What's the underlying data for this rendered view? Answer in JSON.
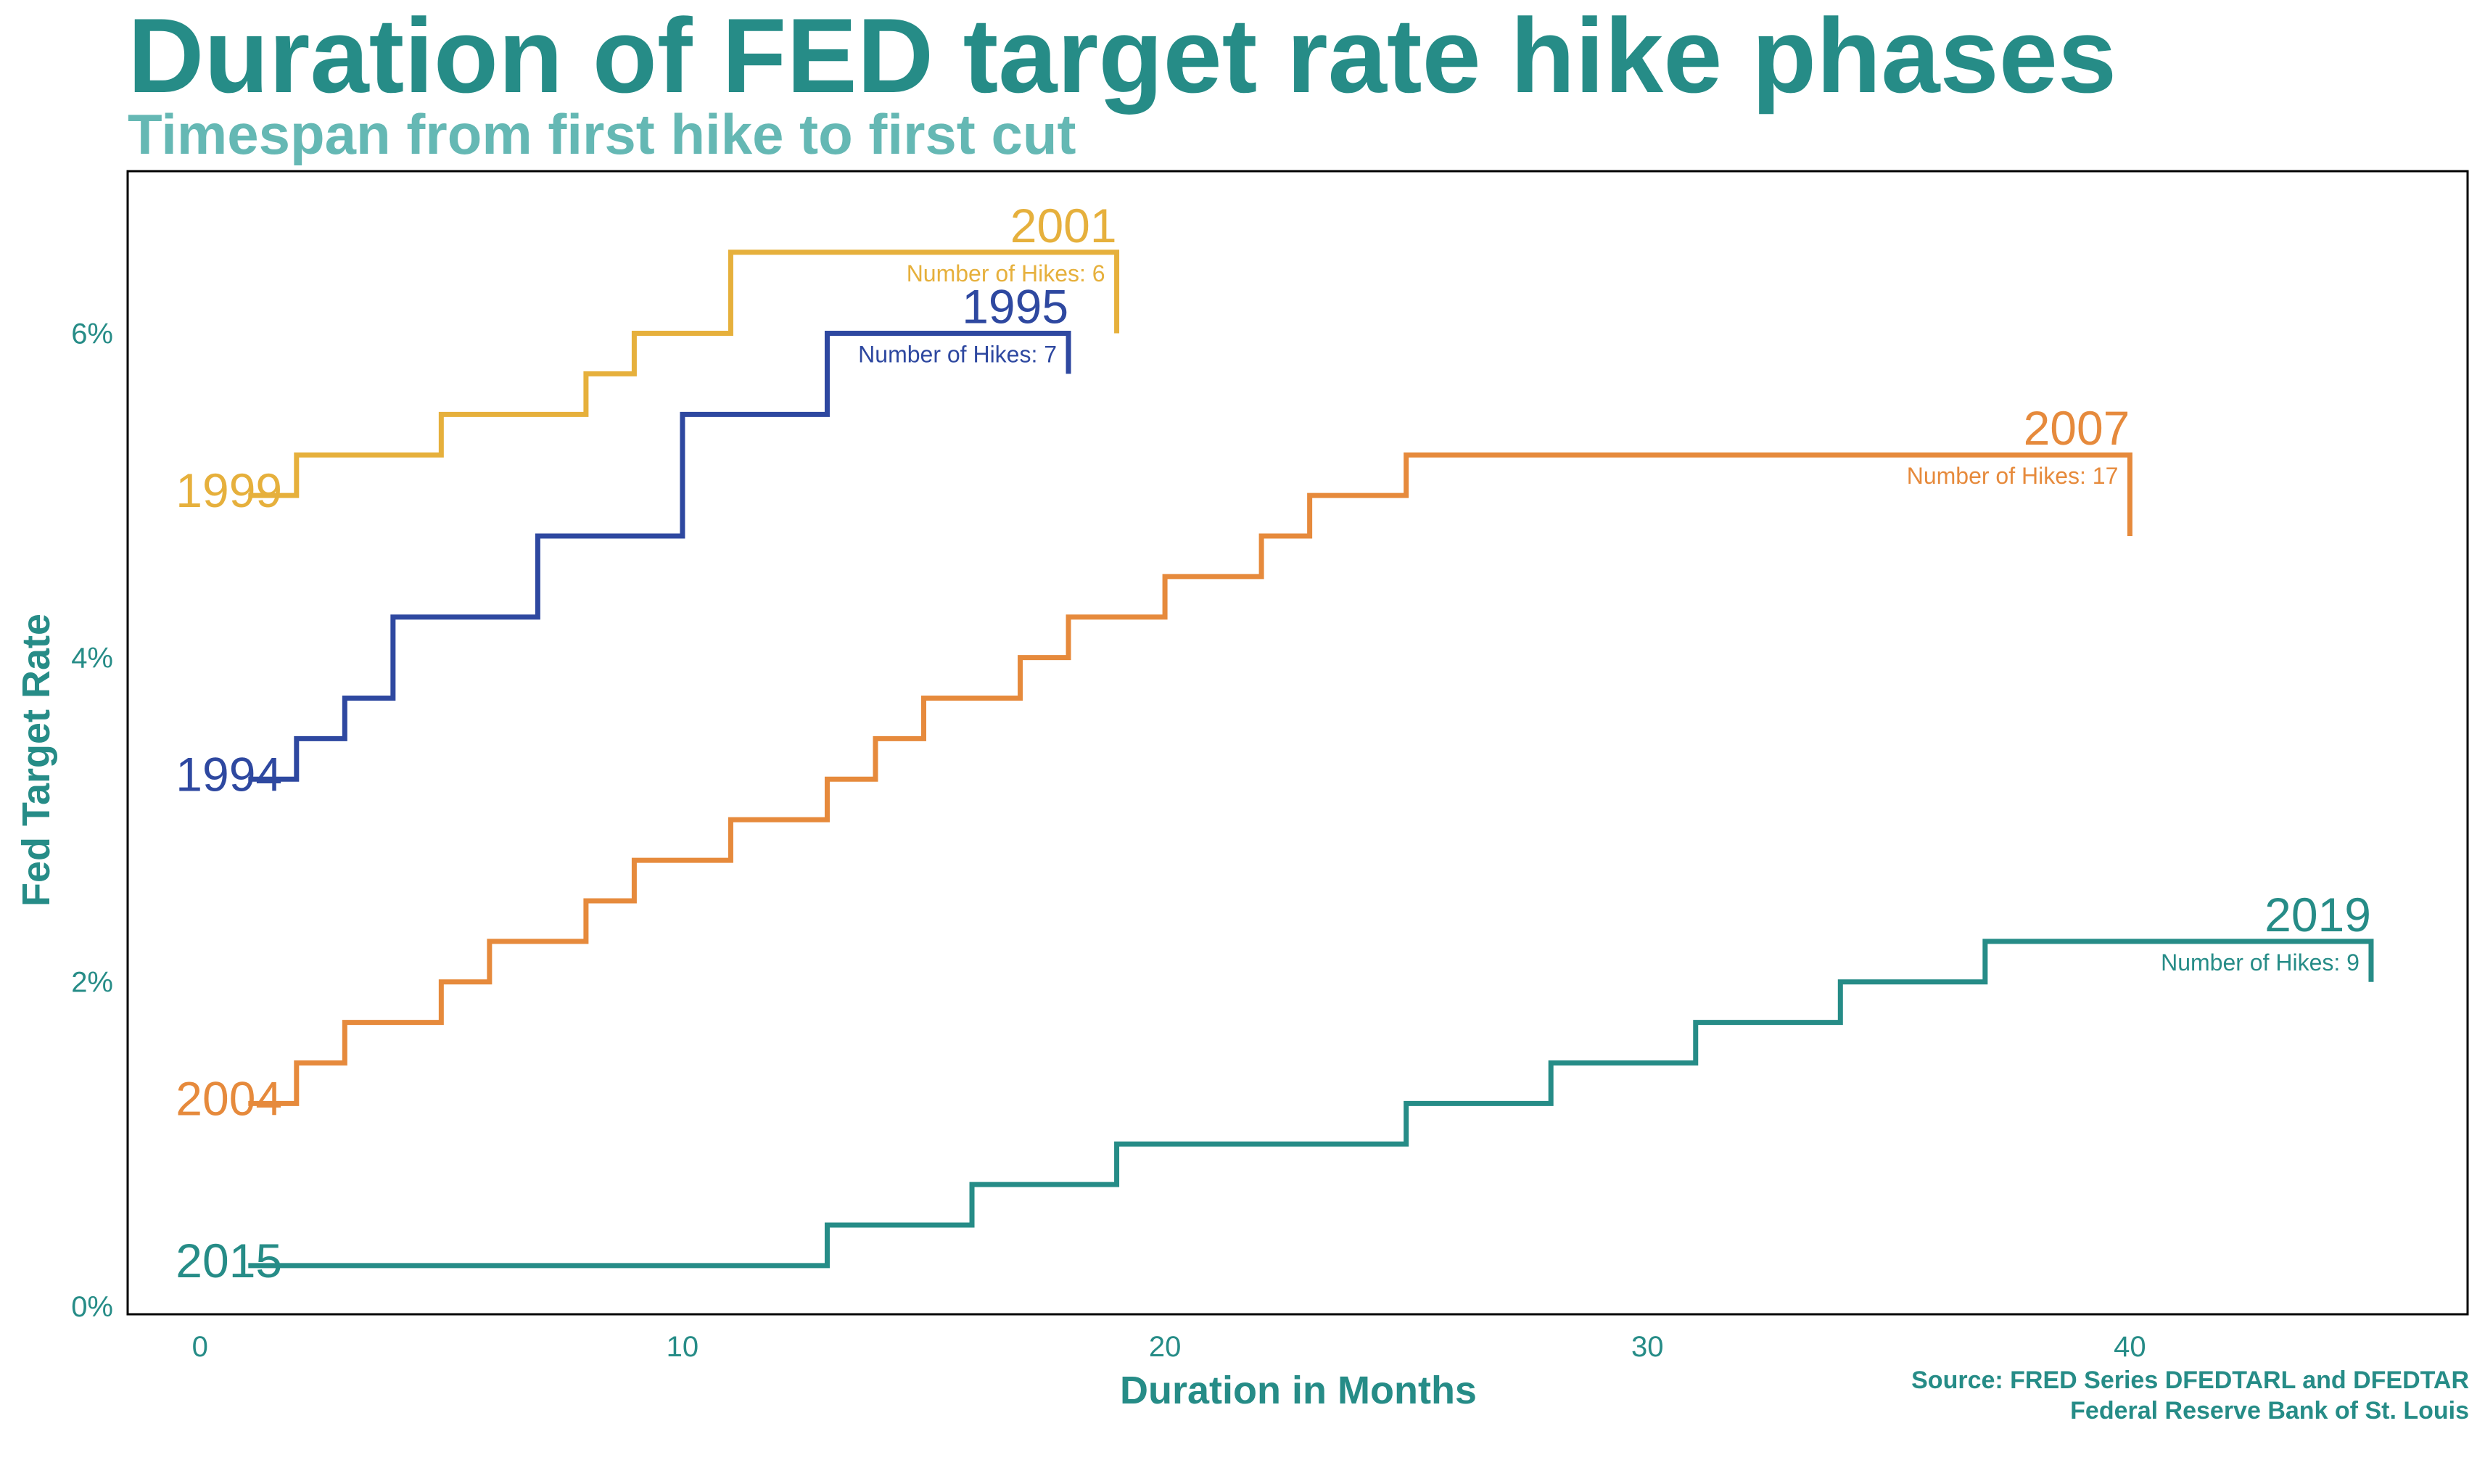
{
  "title": "Duration of FED target rate hike phases",
  "subtitle": "Timespan from first hike to first cut",
  "source": {
    "line1": "Source: FRED Series DFEDTARL and DFEDTAR",
    "line2": "Federal Reserve Bank of St. Louis"
  },
  "chart_data": {
    "type": "line",
    "step": true,
    "xlabel": "Duration in Months",
    "ylabel": "Fed Target Rate",
    "xlim": [
      -1.5,
      47
    ],
    "ylim": [
      -0.05,
      7.0
    ],
    "x_ticks": [
      0,
      10,
      20,
      30,
      40
    ],
    "x_tick_labels": [
      "0",
      "10",
      "20",
      "30",
      "40"
    ],
    "y_ticks": [
      0,
      2,
      4,
      6
    ],
    "y_tick_labels": [
      "0%",
      "2%",
      "4%",
      "6%"
    ],
    "grid": false,
    "series": [
      {
        "start_label": "1999",
        "end_label": "2001",
        "hikes_label": "Number of Hikes: 6",
        "color": "#e6b03c",
        "points": [
          [
            1,
            5.0
          ],
          [
            2,
            5.25
          ],
          [
            5,
            5.5
          ],
          [
            8,
            5.75
          ],
          [
            9,
            6.0
          ],
          [
            11,
            6.5
          ],
          [
            19,
            6.0
          ]
        ]
      },
      {
        "start_label": "1994",
        "end_label": "1995",
        "hikes_label": "Number of Hikes: 7",
        "color": "#2e48a0",
        "points": [
          [
            1,
            3.25
          ],
          [
            2,
            3.5
          ],
          [
            3,
            3.75
          ],
          [
            4,
            4.25
          ],
          [
            7,
            4.75
          ],
          [
            10,
            5.5
          ],
          [
            13,
            6.0
          ],
          [
            18,
            5.75
          ]
        ]
      },
      {
        "start_label": "2004",
        "end_label": "2007",
        "hikes_label": "Number of Hikes: 17",
        "color": "#e68a3c",
        "points": [
          [
            1,
            1.25
          ],
          [
            2,
            1.5
          ],
          [
            3,
            1.75
          ],
          [
            5,
            2.0
          ],
          [
            6,
            2.25
          ],
          [
            8,
            2.5
          ],
          [
            9,
            2.75
          ],
          [
            11,
            3.0
          ],
          [
            13,
            3.25
          ],
          [
            14,
            3.5
          ],
          [
            15,
            3.75
          ],
          [
            17,
            4.0
          ],
          [
            18,
            4.25
          ],
          [
            20,
            4.5
          ],
          [
            22,
            4.75
          ],
          [
            23,
            5.0
          ],
          [
            25,
            5.25
          ],
          [
            40,
            4.75
          ]
        ]
      },
      {
        "start_label": "2015",
        "end_label": "2019",
        "hikes_label": "Number of Hikes: 9",
        "color": "#268c87",
        "points": [
          [
            1,
            0.25
          ],
          [
            13,
            0.5
          ],
          [
            16,
            0.75
          ],
          [
            19,
            1.0
          ],
          [
            25,
            1.25
          ],
          [
            28,
            1.5
          ],
          [
            31,
            1.75
          ],
          [
            34,
            2.0
          ],
          [
            37,
            2.25
          ],
          [
            45,
            2.0
          ]
        ]
      }
    ]
  }
}
